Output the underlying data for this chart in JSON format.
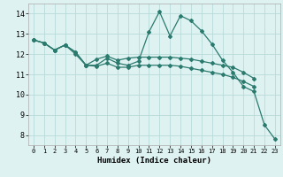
{
  "title": "",
  "xlabel": "Humidex (Indice chaleur)",
  "bg_color": "#dff2f2",
  "grid_color": "#b8dada",
  "line_color": "#2a7a6e",
  "x_values": [
    0,
    1,
    2,
    3,
    4,
    5,
    6,
    7,
    8,
    9,
    10,
    11,
    12,
    13,
    14,
    15,
    16,
    17,
    18,
    19,
    20,
    21,
    22,
    23
  ],
  "line1": [
    12.7,
    12.55,
    12.2,
    12.45,
    12.1,
    11.45,
    11.45,
    11.8,
    11.55,
    11.45,
    11.65,
    13.1,
    14.1,
    12.9,
    13.9,
    13.65,
    13.15,
    12.5,
    11.7,
    11.1,
    10.4,
    10.15,
    8.5,
    7.8
  ],
  "line2": [
    12.7,
    12.55,
    12.2,
    12.45,
    12.1,
    11.45,
    11.75,
    11.9,
    11.7,
    11.8,
    11.85,
    11.85,
    11.85,
    11.85,
    11.8,
    11.75,
    11.65,
    11.55,
    11.45,
    11.35,
    11.1,
    10.8,
    null,
    null
  ],
  "line3": [
    12.7,
    12.55,
    12.2,
    12.45,
    12.0,
    11.45,
    11.4,
    11.55,
    11.35,
    11.35,
    11.45,
    11.45,
    11.45,
    11.45,
    11.4,
    11.3,
    11.2,
    11.1,
    11.0,
    10.85,
    10.65,
    10.4,
    null,
    null
  ],
  "ylim": [
    7.5,
    14.5
  ],
  "xlim": [
    -0.5,
    23.5
  ],
  "yticks": [
    8,
    9,
    10,
    11,
    12,
    13,
    14
  ],
  "xticks": [
    0,
    1,
    2,
    3,
    4,
    5,
    6,
    7,
    8,
    9,
    10,
    11,
    12,
    13,
    14,
    15,
    16,
    17,
    18,
    19,
    20,
    21,
    22,
    23
  ]
}
